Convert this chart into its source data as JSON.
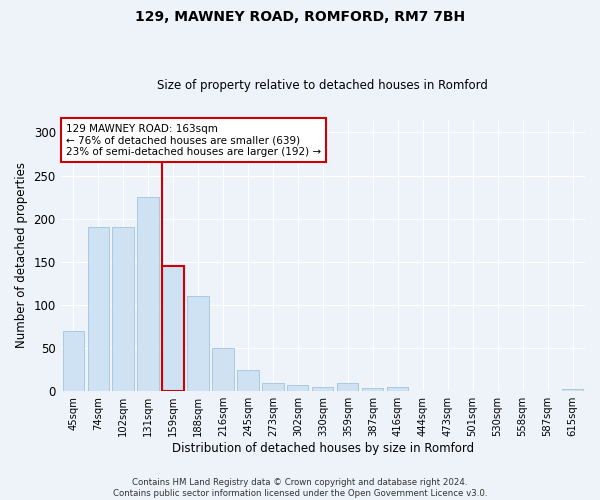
{
  "title1": "129, MAWNEY ROAD, ROMFORD, RM7 7BH",
  "title2": "Size of property relative to detached houses in Romford",
  "xlabel": "Distribution of detached houses by size in Romford",
  "ylabel": "Number of detached properties",
  "categories": [
    "45sqm",
    "74sqm",
    "102sqm",
    "131sqm",
    "159sqm",
    "188sqm",
    "216sqm",
    "245sqm",
    "273sqm",
    "302sqm",
    "330sqm",
    "359sqm",
    "387sqm",
    "416sqm",
    "444sqm",
    "473sqm",
    "501sqm",
    "530sqm",
    "558sqm",
    "587sqm",
    "615sqm"
  ],
  "values": [
    70,
    190,
    190,
    225,
    145,
    110,
    50,
    25,
    9,
    7,
    5,
    9,
    4,
    5,
    0,
    0,
    0,
    0,
    0,
    0,
    2
  ],
  "bar_color": "#cfe2f3",
  "bar_edge_color": "#9ec4e0",
  "highlight_index": 4,
  "highlight_color": "#cc0000",
  "annotation_text": "129 MAWNEY ROAD: 163sqm\n← 76% of detached houses are smaller (639)\n23% of semi-detached houses are larger (192) →",
  "annotation_box_color": "#ffffff",
  "annotation_box_edge": "#cc0000",
  "ylim": [
    0,
    315
  ],
  "yticks": [
    0,
    50,
    100,
    150,
    200,
    250,
    300
  ],
  "footer": "Contains HM Land Registry data © Crown copyright and database right 2024.\nContains public sector information licensed under the Open Government Licence v3.0.",
  "bg_color": "#eef2f9",
  "plot_bg_color": "#eef2f9"
}
